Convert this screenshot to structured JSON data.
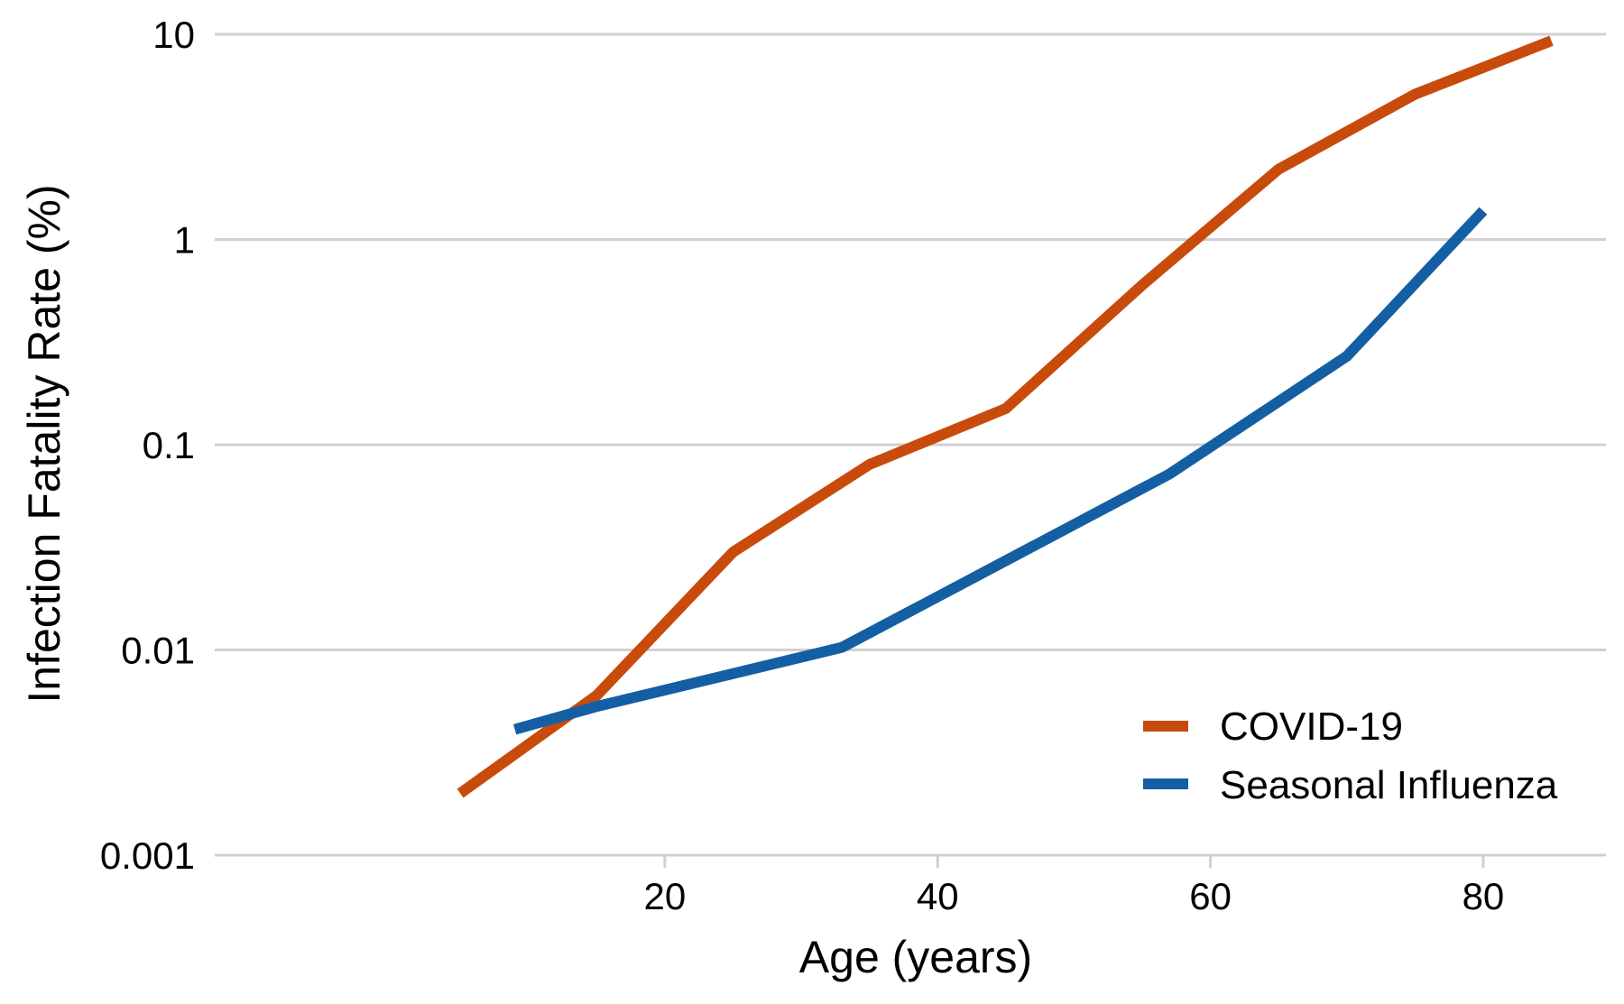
{
  "chart_data": {
    "type": "line",
    "xlabel": "Age (years)",
    "ylabel": "Infection Fatality Rate (%)",
    "y_scale": "log",
    "xlim": [
      -13,
      89
    ],
    "ylim": [
      0.001,
      10
    ],
    "x_ticks": [
      20,
      40,
      60,
      80
    ],
    "y_ticks": [
      0.001,
      0.01,
      0.1,
      1,
      10
    ],
    "y_tick_labels": [
      "0.001",
      "0.01",
      "0.1",
      "1",
      "10"
    ],
    "grid": "horizontal",
    "legend_position": "bottom-right",
    "series": [
      {
        "name": "COVID-19",
        "color": "#c84b0c",
        "x": [
          5,
          15,
          25,
          35,
          45,
          55,
          65,
          75,
          85
        ],
        "y": [
          0.002,
          0.006,
          0.03,
          0.08,
          0.15,
          0.6,
          2.2,
          5.1,
          9.3
        ]
      },
      {
        "name": "Seasonal Influenza",
        "color": "#145fa3",
        "x": [
          9,
          15,
          33,
          57,
          70,
          80
        ],
        "y": [
          0.0041,
          0.0053,
          0.0103,
          0.072,
          0.27,
          1.38
        ]
      }
    ]
  }
}
